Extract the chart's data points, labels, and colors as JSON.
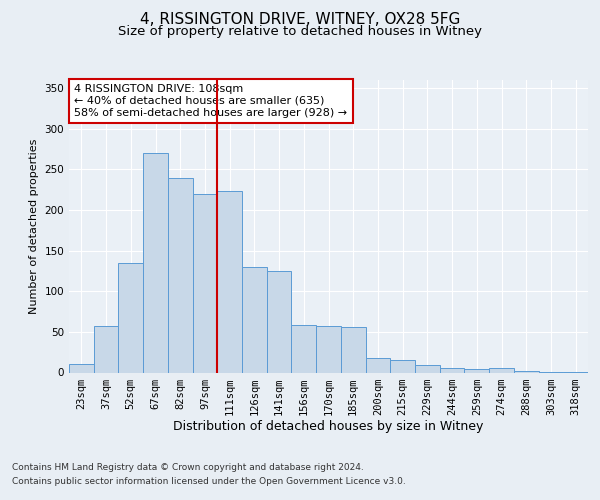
{
  "title1": "4, RISSINGTON DRIVE, WITNEY, OX28 5FG",
  "title2": "Size of property relative to detached houses in Witney",
  "xlabel": "Distribution of detached houses by size in Witney",
  "ylabel": "Number of detached properties",
  "categories": [
    "23sqm",
    "37sqm",
    "52sqm",
    "67sqm",
    "82sqm",
    "97sqm",
    "111sqm",
    "126sqm",
    "141sqm",
    "156sqm",
    "170sqm",
    "185sqm",
    "200sqm",
    "215sqm",
    "229sqm",
    "244sqm",
    "259sqm",
    "274sqm",
    "288sqm",
    "303sqm",
    "318sqm"
  ],
  "values": [
    10,
    57,
    135,
    270,
    240,
    220,
    224,
    130,
    125,
    59,
    57,
    56,
    18,
    15,
    9,
    5,
    4,
    6,
    2,
    1,
    1
  ],
  "bar_color": "#c8d8e8",
  "bar_edge_color": "#5b9bd5",
  "vline_color": "#cc0000",
  "annotation_text": "4 RISSINGTON DRIVE: 108sqm\n← 40% of detached houses are smaller (635)\n58% of semi-detached houses are larger (928) →",
  "annotation_box_color": "#ffffff",
  "annotation_box_edge_color": "#cc0000",
  "ylim": [
    0,
    360
  ],
  "yticks": [
    0,
    50,
    100,
    150,
    200,
    250,
    300,
    350
  ],
  "background_color": "#e8eef4",
  "plot_bg_color": "#eaf0f6",
  "footer1": "Contains HM Land Registry data © Crown copyright and database right 2024.",
  "footer2": "Contains public sector information licensed under the Open Government Licence v3.0.",
  "title1_fontsize": 11,
  "title2_fontsize": 9.5,
  "xlabel_fontsize": 9,
  "ylabel_fontsize": 8,
  "tick_fontsize": 7.5,
  "annotation_fontsize": 8,
  "footer_fontsize": 6.5
}
